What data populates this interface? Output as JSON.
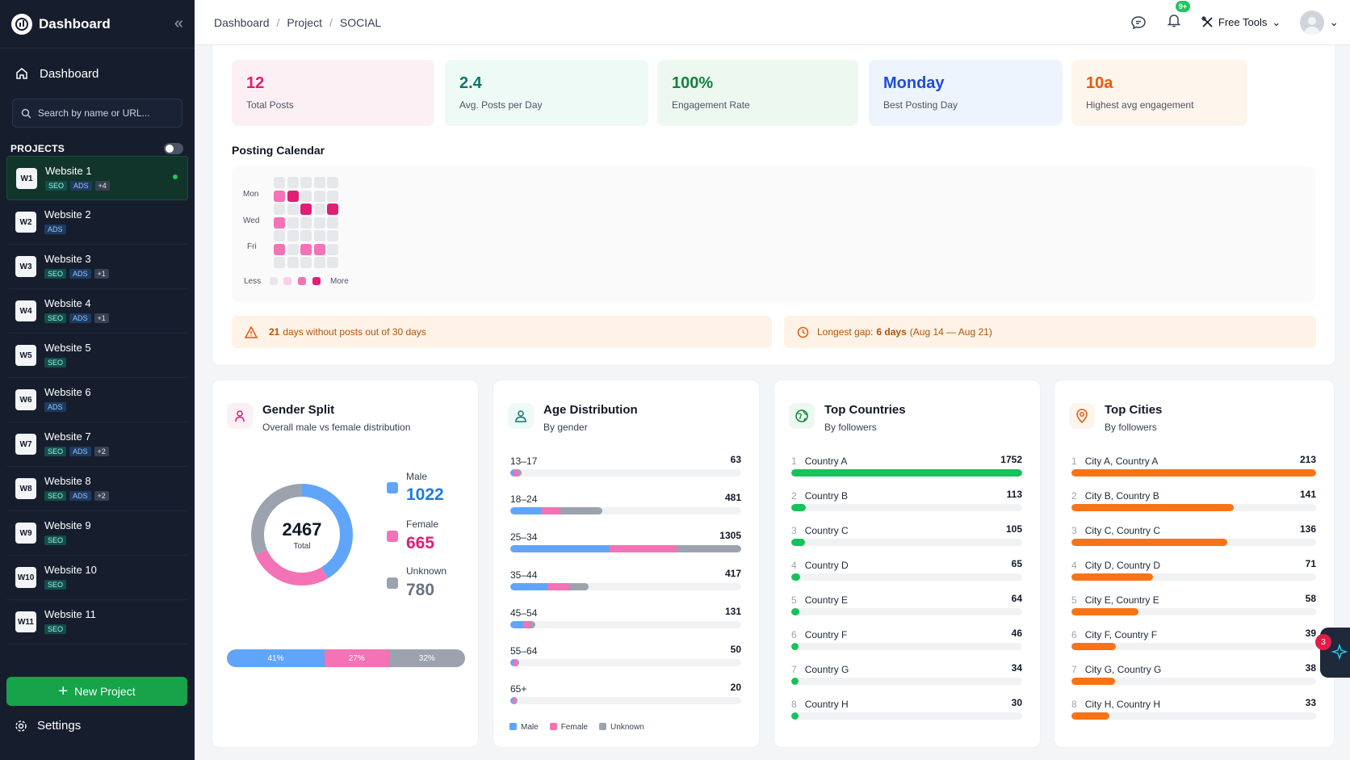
{
  "sidebar": {
    "title": "Dashboard",
    "nav_dashboard": "Dashboard",
    "search_placeholder": "Search by name or URL...",
    "projects_label": "PROJECTS",
    "projects": [
      {
        "id": "W1",
        "name": "Website 1",
        "tags": [
          "SEO",
          "ADS",
          "+4"
        ],
        "active": true
      },
      {
        "id": "W2",
        "name": "Website 2",
        "tags": [
          "ADS"
        ]
      },
      {
        "id": "W3",
        "name": "Website 3",
        "tags": [
          "SEO",
          "ADS",
          "+1"
        ]
      },
      {
        "id": "W4",
        "name": "Website 4",
        "tags": [
          "SEO",
          "ADS",
          "+1"
        ]
      },
      {
        "id": "W5",
        "name": "Website 5",
        "tags": [
          "SEO"
        ]
      },
      {
        "id": "W6",
        "name": "Website 6",
        "tags": [
          "ADS"
        ]
      },
      {
        "id": "W7",
        "name": "Website 7",
        "tags": [
          "SEO",
          "ADS",
          "+2"
        ]
      },
      {
        "id": "W8",
        "name": "Website 8",
        "tags": [
          "SEO",
          "ADS",
          "+2"
        ]
      },
      {
        "id": "W9",
        "name": "Website 9",
        "tags": [
          "SEO"
        ]
      },
      {
        "id": "W10",
        "name": "Website 10",
        "tags": [
          "SEO"
        ]
      },
      {
        "id": "W11",
        "name": "Website 11",
        "tags": [
          "SEO"
        ]
      }
    ],
    "new_project": "New Project",
    "settings": "Settings"
  },
  "topbar": {
    "breadcrumb": [
      "Dashboard",
      "Project",
      "SOCIAL"
    ],
    "notif_badge": "9+",
    "free_tools": "Free Tools"
  },
  "stats": [
    {
      "value": "12",
      "label": "Total Posts",
      "color": "#e11d74",
      "bg": "#fdf0f4"
    },
    {
      "value": "2.4",
      "label": "Avg. Posts per Day",
      "color": "#0f766e",
      "bg": "#eefaf6"
    },
    {
      "value": "100%",
      "label": "Engagement Rate",
      "color": "#15803d",
      "bg": "#edf9f0"
    },
    {
      "value": "Monday",
      "label": "Best Posting Day",
      "color": "#1d4ed8",
      "bg": "#eef4fd"
    },
    {
      "value": "10a",
      "label": "Highest avg engagement",
      "color": "#ea580c",
      "bg": "#fef5ec"
    }
  ],
  "calendar": {
    "title": "Posting Calendar",
    "day_labels": [
      "Mon",
      "Wed",
      "Fri"
    ],
    "legend_less": "Less",
    "legend_more": "More",
    "active_cells": [
      [
        0,
        1
      ],
      [
        1,
        1
      ],
      [
        2,
        2
      ],
      [
        4,
        2
      ],
      [
        0,
        3
      ],
      [
        0,
        5
      ],
      [
        2,
        5
      ],
      [
        3,
        5
      ]
    ]
  },
  "alerts": {
    "gap_count": "21",
    "gap_text": "days without posts out of 30 days",
    "longest_label": "Longest gap:",
    "longest_value": "6 days",
    "longest_range": "(Aug 14 — Aug 21)"
  },
  "gender": {
    "title": "Gender Split",
    "subtitle": "Overall male vs female distribution",
    "total": "2467",
    "total_label": "Total",
    "male_label": "Male",
    "male_value": "1022",
    "female_label": "Female",
    "female_value": "665",
    "unknown_label": "Unknown",
    "unknown_value": "780",
    "bar": [
      "41%",
      "27%",
      "32%"
    ],
    "colors": {
      "male": "#60a5fa",
      "female": "#f472b6",
      "unknown": "#9ca3af"
    }
  },
  "age": {
    "title": "Age Distribution",
    "subtitle": "By gender",
    "rows": [
      {
        "label": "13–17",
        "value": "63",
        "share": 0.05,
        "split": [
          0.25,
          0.45,
          0.3
        ]
      },
      {
        "label": "18–24",
        "value": "481",
        "share": 0.4,
        "split": [
          0.34,
          0.2,
          0.46
        ]
      },
      {
        "label": "25–34",
        "value": "1305",
        "share": 1.0,
        "split": [
          0.43,
          0.29,
          0.28
        ]
      },
      {
        "label": "35–44",
        "value": "417",
        "share": 0.34,
        "split": [
          0.47,
          0.28,
          0.25
        ]
      },
      {
        "label": "45–54",
        "value": "131",
        "share": 0.11,
        "split": [
          0.5,
          0.3,
          0.2
        ]
      },
      {
        "label": "55–64",
        "value": "50",
        "share": 0.04,
        "split": [
          0.35,
          0.45,
          0.2
        ]
      },
      {
        "label": "65+",
        "value": "20",
        "share": 0.015,
        "split": [
          0.4,
          0.4,
          0.2
        ]
      }
    ],
    "legend": [
      "Male",
      "Female",
      "Unknown"
    ]
  },
  "countries": {
    "title": "Top Countries",
    "subtitle": "By followers",
    "color": "#16c25a",
    "rows": [
      {
        "rank": "1",
        "name": "Country A",
        "value": 1752
      },
      {
        "rank": "2",
        "name": "Country B",
        "value": 113
      },
      {
        "rank": "3",
        "name": "Country C",
        "value": 105
      },
      {
        "rank": "4",
        "name": "Country D",
        "value": 65
      },
      {
        "rank": "5",
        "name": "Country E",
        "value": 64
      },
      {
        "rank": "6",
        "name": "Country F",
        "value": 46
      },
      {
        "rank": "7",
        "name": "Country G",
        "value": 34
      },
      {
        "rank": "8",
        "name": "Country H",
        "value": 30
      }
    ]
  },
  "cities": {
    "title": "Top Cities",
    "subtitle": "By followers",
    "color": "#f97316",
    "rows": [
      {
        "rank": "1",
        "name": "City A, Country A",
        "value": 213
      },
      {
        "rank": "2",
        "name": "City B, Country B",
        "value": 141
      },
      {
        "rank": "3",
        "name": "City C, Country C",
        "value": 136
      },
      {
        "rank": "4",
        "name": "City D, Country D",
        "value": 71
      },
      {
        "rank": "5",
        "name": "City E, Country E",
        "value": 58
      },
      {
        "rank": "6",
        "name": "City F, Country F",
        "value": 39
      },
      {
        "rank": "7",
        "name": "City G, Country G",
        "value": 38
      },
      {
        "rank": "8",
        "name": "City H, Country H",
        "value": 33
      }
    ]
  },
  "assistant_badge": "3"
}
